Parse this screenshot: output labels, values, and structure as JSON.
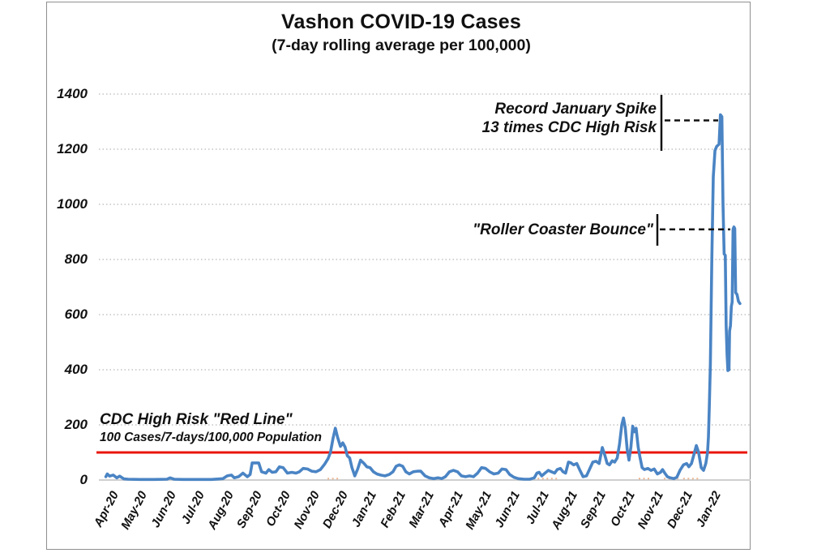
{
  "chart_data": {
    "type": "line",
    "title": "Vashon COVID-19 Cases",
    "subtitle": "(7-day rolling average per 100,000)",
    "xlabel": "",
    "ylabel": "",
    "ylim": [
      0,
      1400
    ],
    "y_ticks": [
      0,
      200,
      400,
      600,
      800,
      1000,
      1200,
      1400
    ],
    "grid": "dotted-horizontal",
    "x_tick_labels": [
      "Apr-20",
      "May-20",
      "Jun-20",
      "Jul-20",
      "Aug-20",
      "Sep-20",
      "Oct-20",
      "Nov-20",
      "Dec-20",
      "Jan-21",
      "Feb-21",
      "Mar-21",
      "Apr-21",
      "May-21",
      "Jun-21",
      "Jul-21",
      "Aug-21",
      "Sep-21",
      "Oct-21",
      "Nov-21",
      "Dec-21",
      "Jan-22"
    ],
    "red_line": {
      "value": 100,
      "color": "#e8150b",
      "label_line1": "CDC High Risk \"Red Line\"",
      "label_line2": "100 Cases/7-days/100,000 Population"
    },
    "annotations": [
      {
        "id": "record-spike",
        "text": [
          "Record January Spike",
          "13 times CDC High Risk"
        ],
        "points_to_value": 1325
      },
      {
        "id": "roller-coaster",
        "text": [
          "\"Roller Coaster Bounce\""
        ],
        "points_to_value": 918
      }
    ],
    "series": [
      {
        "name": "7-day rolling average cases per 100,000",
        "color": "#4a84c4",
        "x_unit": "months since Apr-2020 tick",
        "points": [
          [
            -0.18,
            12
          ],
          [
            -0.13,
            22
          ],
          [
            -0.05,
            14
          ],
          [
            0.08,
            18
          ],
          [
            0.2,
            8
          ],
          [
            0.3,
            14
          ],
          [
            0.45,
            4
          ],
          [
            0.6,
            3
          ],
          [
            1.0,
            2
          ],
          [
            1.5,
            2
          ],
          [
            1.95,
            3
          ],
          [
            2.06,
            8
          ],
          [
            2.2,
            3
          ],
          [
            2.5,
            2
          ],
          [
            3.0,
            2
          ],
          [
            3.5,
            2
          ],
          [
            3.9,
            5
          ],
          [
            4.05,
            15
          ],
          [
            4.2,
            18
          ],
          [
            4.3,
            8
          ],
          [
            4.45,
            12
          ],
          [
            4.6,
            25
          ],
          [
            4.75,
            12
          ],
          [
            4.85,
            20
          ],
          [
            4.92,
            62
          ],
          [
            5.15,
            62
          ],
          [
            5.25,
            30
          ],
          [
            5.4,
            25
          ],
          [
            5.5,
            38
          ],
          [
            5.62,
            28
          ],
          [
            5.75,
            30
          ],
          [
            5.87,
            48
          ],
          [
            6.0,
            45
          ],
          [
            6.15,
            25
          ],
          [
            6.3,
            28
          ],
          [
            6.45,
            25
          ],
          [
            6.57,
            30
          ],
          [
            6.7,
            42
          ],
          [
            6.85,
            40
          ],
          [
            7.0,
            32
          ],
          [
            7.15,
            30
          ],
          [
            7.3,
            38
          ],
          [
            7.45,
            58
          ],
          [
            7.57,
            78
          ],
          [
            7.65,
            100
          ],
          [
            7.74,
            150
          ],
          [
            7.82,
            188
          ],
          [
            7.9,
            155
          ],
          [
            8.0,
            122
          ],
          [
            8.08,
            135
          ],
          [
            8.16,
            120
          ],
          [
            8.24,
            88
          ],
          [
            8.32,
            80
          ],
          [
            8.4,
            45
          ],
          [
            8.5,
            15
          ],
          [
            8.6,
            40
          ],
          [
            8.7,
            72
          ],
          [
            8.82,
            60
          ],
          [
            8.92,
            48
          ],
          [
            9.03,
            45
          ],
          [
            9.15,
            30
          ],
          [
            9.27,
            22
          ],
          [
            9.4,
            18
          ],
          [
            9.55,
            15
          ],
          [
            9.7,
            20
          ],
          [
            9.83,
            30
          ],
          [
            9.94,
            50
          ],
          [
            10.05,
            55
          ],
          [
            10.17,
            50
          ],
          [
            10.28,
            30
          ],
          [
            10.4,
            22
          ],
          [
            10.54,
            30
          ],
          [
            10.68,
            32
          ],
          [
            10.8,
            32
          ],
          [
            10.95,
            15
          ],
          [
            11.1,
            8
          ],
          [
            11.25,
            5
          ],
          [
            11.4,
            8
          ],
          [
            11.53,
            5
          ],
          [
            11.66,
            12
          ],
          [
            11.8,
            30
          ],
          [
            11.94,
            35
          ],
          [
            12.08,
            30
          ],
          [
            12.22,
            15
          ],
          [
            12.36,
            12
          ],
          [
            12.5,
            15
          ],
          [
            12.64,
            12
          ],
          [
            12.78,
            25
          ],
          [
            12.92,
            45
          ],
          [
            13.06,
            42
          ],
          [
            13.2,
            30
          ],
          [
            13.35,
            22
          ],
          [
            13.5,
            25
          ],
          [
            13.63,
            40
          ],
          [
            13.77,
            38
          ],
          [
            13.9,
            20
          ],
          [
            14.05,
            10
          ],
          [
            14.2,
            5
          ],
          [
            14.4,
            3
          ],
          [
            14.6,
            3
          ],
          [
            14.76,
            8
          ],
          [
            14.85,
            25
          ],
          [
            14.93,
            28
          ],
          [
            15.02,
            15
          ],
          [
            15.13,
            25
          ],
          [
            15.25,
            35
          ],
          [
            15.36,
            30
          ],
          [
            15.47,
            25
          ],
          [
            15.56,
            38
          ],
          [
            15.67,
            42
          ],
          [
            15.76,
            30
          ],
          [
            15.85,
            25
          ],
          [
            15.95,
            65
          ],
          [
            16.04,
            62
          ],
          [
            16.13,
            55
          ],
          [
            16.24,
            60
          ],
          [
            16.35,
            35
          ],
          [
            16.46,
            12
          ],
          [
            16.58,
            15
          ],
          [
            16.69,
            40
          ],
          [
            16.8,
            65
          ],
          [
            16.91,
            68
          ],
          [
            17.02,
            60
          ],
          [
            17.13,
            118
          ],
          [
            17.22,
            90
          ],
          [
            17.3,
            60
          ],
          [
            17.38,
            55
          ],
          [
            17.48,
            70
          ],
          [
            17.56,
            65
          ],
          [
            17.65,
            80
          ],
          [
            17.73,
            130
          ],
          [
            17.81,
            200
          ],
          [
            17.87,
            225
          ],
          [
            17.93,
            190
          ],
          [
            18.0,
            110
          ],
          [
            18.06,
            72
          ],
          [
            18.13,
            120
          ],
          [
            18.19,
            195
          ],
          [
            18.25,
            175
          ],
          [
            18.31,
            188
          ],
          [
            18.38,
            120
          ],
          [
            18.44,
            85
          ],
          [
            18.52,
            45
          ],
          [
            18.6,
            38
          ],
          [
            18.72,
            42
          ],
          [
            18.83,
            35
          ],
          [
            18.94,
            40
          ],
          [
            19.05,
            22
          ],
          [
            19.16,
            28
          ],
          [
            19.23,
            38
          ],
          [
            19.31,
            25
          ],
          [
            19.4,
            12
          ],
          [
            19.5,
            8
          ],
          [
            19.62,
            5
          ],
          [
            19.73,
            10
          ],
          [
            19.84,
            35
          ],
          [
            19.96,
            55
          ],
          [
            20.07,
            60
          ],
          [
            20.15,
            48
          ],
          [
            20.24,
            60
          ],
          [
            20.32,
            90
          ],
          [
            20.41,
            125
          ],
          [
            20.49,
            100
          ],
          [
            20.58,
            45
          ],
          [
            20.66,
            35
          ],
          [
            20.74,
            60
          ],
          [
            20.8,
            100
          ],
          [
            20.83,
            155
          ],
          [
            20.86,
            255
          ],
          [
            20.9,
            420
          ],
          [
            20.95,
            800
          ],
          [
            21.0,
            1100
          ],
          [
            21.06,
            1195
          ],
          [
            21.12,
            1210
          ],
          [
            21.2,
            1218
          ],
          [
            21.25,
            1325
          ],
          [
            21.3,
            1318
          ],
          [
            21.34,
            1000
          ],
          [
            21.38,
            820
          ],
          [
            21.42,
            815
          ],
          [
            21.45,
            560
          ],
          [
            21.48,
            455
          ],
          [
            21.51,
            397
          ],
          [
            21.55,
            400
          ],
          [
            21.57,
            540
          ],
          [
            21.6,
            560
          ],
          [
            21.63,
            630
          ],
          [
            21.66,
            645
          ],
          [
            21.69,
            910
          ],
          [
            21.72,
            918
          ],
          [
            21.75,
            912
          ],
          [
            21.78,
            680
          ],
          [
            21.83,
            673
          ],
          [
            21.88,
            648
          ],
          [
            21.93,
            640
          ]
        ]
      },
      {
        "name": "faint-orange-series-near-zero",
        "color": "#e07b39",
        "approx_value": 5,
        "month_ranges": [
          [
            7.55,
            7.95
          ],
          [
            14.72,
            15.55
          ],
          [
            18.4,
            18.85
          ],
          [
            19.28,
            19.78
          ],
          [
            19.95,
            20.55
          ]
        ]
      }
    ],
    "colors": {
      "line_blue": "#4a84c4",
      "red_line": "#e8150b",
      "grid_dotted": "#b8b8b8",
      "zero_line": "#cfcfcf",
      "frame_border": "#8f8f8f",
      "annotation_text": "#111111"
    }
  }
}
